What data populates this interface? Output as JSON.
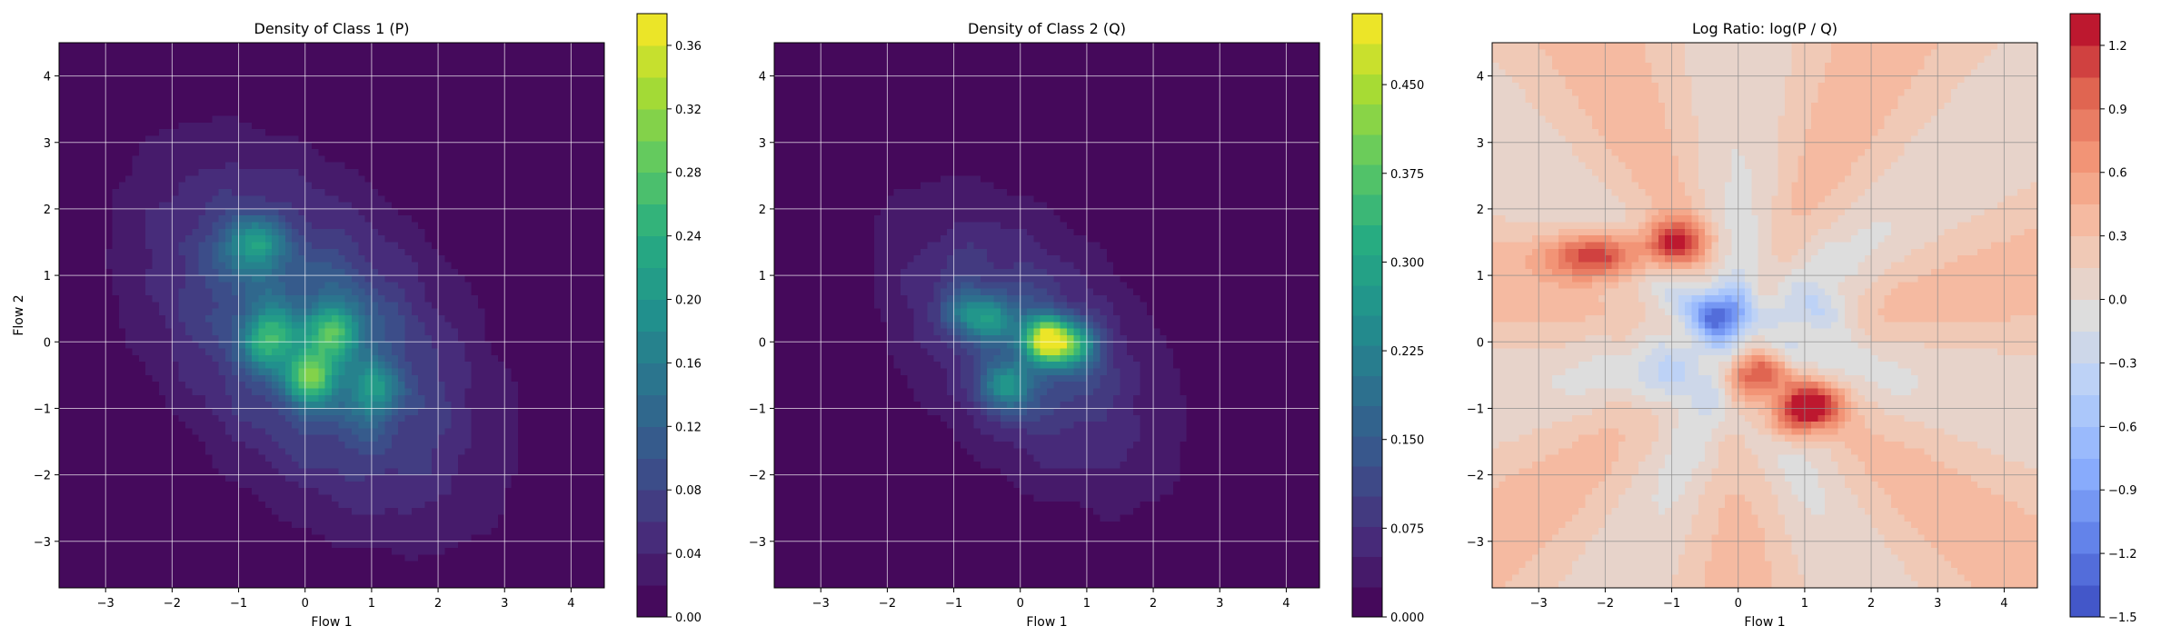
{
  "chart_data": [
    {
      "type": "heatmap",
      "title": "Density of Class 1 (P)",
      "xlabel": "Flow 1",
      "ylabel": "Flow 2",
      "xlim": [
        -3.7,
        4.5
      ],
      "ylim": [
        -3.7,
        4.5
      ],
      "xticks": [
        "−3",
        "−2",
        "−1",
        "0",
        "1",
        "2",
        "3",
        "4"
      ],
      "yticks": [
        "−3",
        "−2",
        "−1",
        "0",
        "1",
        "2",
        "3",
        "4"
      ],
      "grid": true,
      "colormap": "viridis",
      "colorbar": {
        "min": 0.0,
        "max": 0.38,
        "levels": 19,
        "ticks": [
          0.0,
          0.04,
          0.08,
          0.12,
          0.16,
          0.2,
          0.24,
          0.28,
          0.32,
          0.36
        ],
        "tick_labels": [
          "0.00",
          "0.04",
          "0.08",
          "0.12",
          "0.16",
          "0.20",
          "0.24",
          "0.28",
          "0.32",
          "0.36"
        ]
      },
      "density_peaks": [
        {
          "x": -0.8,
          "y": 1.45,
          "value": 0.25
        },
        {
          "x": -0.5,
          "y": 0.05,
          "value": 0.26
        },
        {
          "x": 0.1,
          "y": -0.5,
          "value": 0.28
        },
        {
          "x": 0.5,
          "y": 0.2,
          "value": 0.24
        },
        {
          "x": 1.0,
          "y": -0.75,
          "value": 0.2
        }
      ]
    },
    {
      "type": "heatmap",
      "title": "Density of Class 2 (Q)",
      "xlabel": "Flow 1",
      "ylabel": "",
      "xlim": [
        -3.7,
        4.5
      ],
      "ylim": [
        -3.7,
        4.5
      ],
      "xticks": [
        "−3",
        "−2",
        "−1",
        "0",
        "1",
        "2",
        "3",
        "4"
      ],
      "yticks": [
        "−3",
        "−2",
        "−1",
        "0",
        "1",
        "2",
        "3",
        "4"
      ],
      "grid": true,
      "colormap": "viridis",
      "colorbar": {
        "min": 0.0,
        "max": 0.51,
        "levels": 20,
        "ticks": [
          0.0,
          0.075,
          0.15,
          0.225,
          0.3,
          0.375,
          0.45
        ],
        "tick_labels": [
          "0.000",
          "0.075",
          "0.150",
          "0.225",
          "0.300",
          "0.375",
          "0.450"
        ]
      },
      "density_peaks": [
        {
          "x": 0.4,
          "y": 0.05,
          "value": 0.46
        },
        {
          "x": -0.4,
          "y": 0.3,
          "value": 0.27
        },
        {
          "x": -0.2,
          "y": -0.7,
          "value": 0.3
        },
        {
          "x": 0.8,
          "y": -0.1,
          "value": 0.32
        },
        {
          "x": -0.9,
          "y": 0.5,
          "value": 0.2
        }
      ]
    },
    {
      "type": "heatmap",
      "title": "Log Ratio: log(P / Q)",
      "xlabel": "Flow 1",
      "ylabel": "",
      "xlim": [
        -3.7,
        4.5
      ],
      "ylim": [
        -3.7,
        4.5
      ],
      "xticks": [
        "−3",
        "−2",
        "−1",
        "0",
        "1",
        "2",
        "3",
        "4"
      ],
      "yticks": [
        "−3",
        "−2",
        "−1",
        "0",
        "1",
        "2",
        "3",
        "4"
      ],
      "grid": true,
      "colormap": "coolwarm",
      "colorbar": {
        "min": -1.5,
        "max": 1.35,
        "levels": 19,
        "ticks": [
          -1.5,
          -1.2,
          -0.9,
          -0.6,
          -0.3,
          0.0,
          0.3,
          0.6,
          0.9,
          1.2
        ],
        "tick_labels": [
          "−1.5",
          "−1.2",
          "−0.9",
          "−0.6",
          "−0.3",
          "0.0",
          "0.3",
          "0.6",
          "0.9",
          "1.2"
        ]
      },
      "background_value": 0.2,
      "features": [
        {
          "x": -2.1,
          "y": 1.3,
          "value": 1.1
        },
        {
          "x": -0.9,
          "y": 1.5,
          "value": 1.1
        },
        {
          "x": -0.3,
          "y": 0.4,
          "value": -1.2
        },
        {
          "x": 0.3,
          "y": -0.5,
          "value": 1.2
        },
        {
          "x": 1.2,
          "y": -0.9,
          "value": 1.0
        },
        {
          "x": 0.8,
          "y": -1.1,
          "value": 0.9
        },
        {
          "x": 1.3,
          "y": 0.4,
          "value": -0.4
        },
        {
          "x": -1.0,
          "y": -0.6,
          "value": -0.4
        }
      ]
    }
  ]
}
